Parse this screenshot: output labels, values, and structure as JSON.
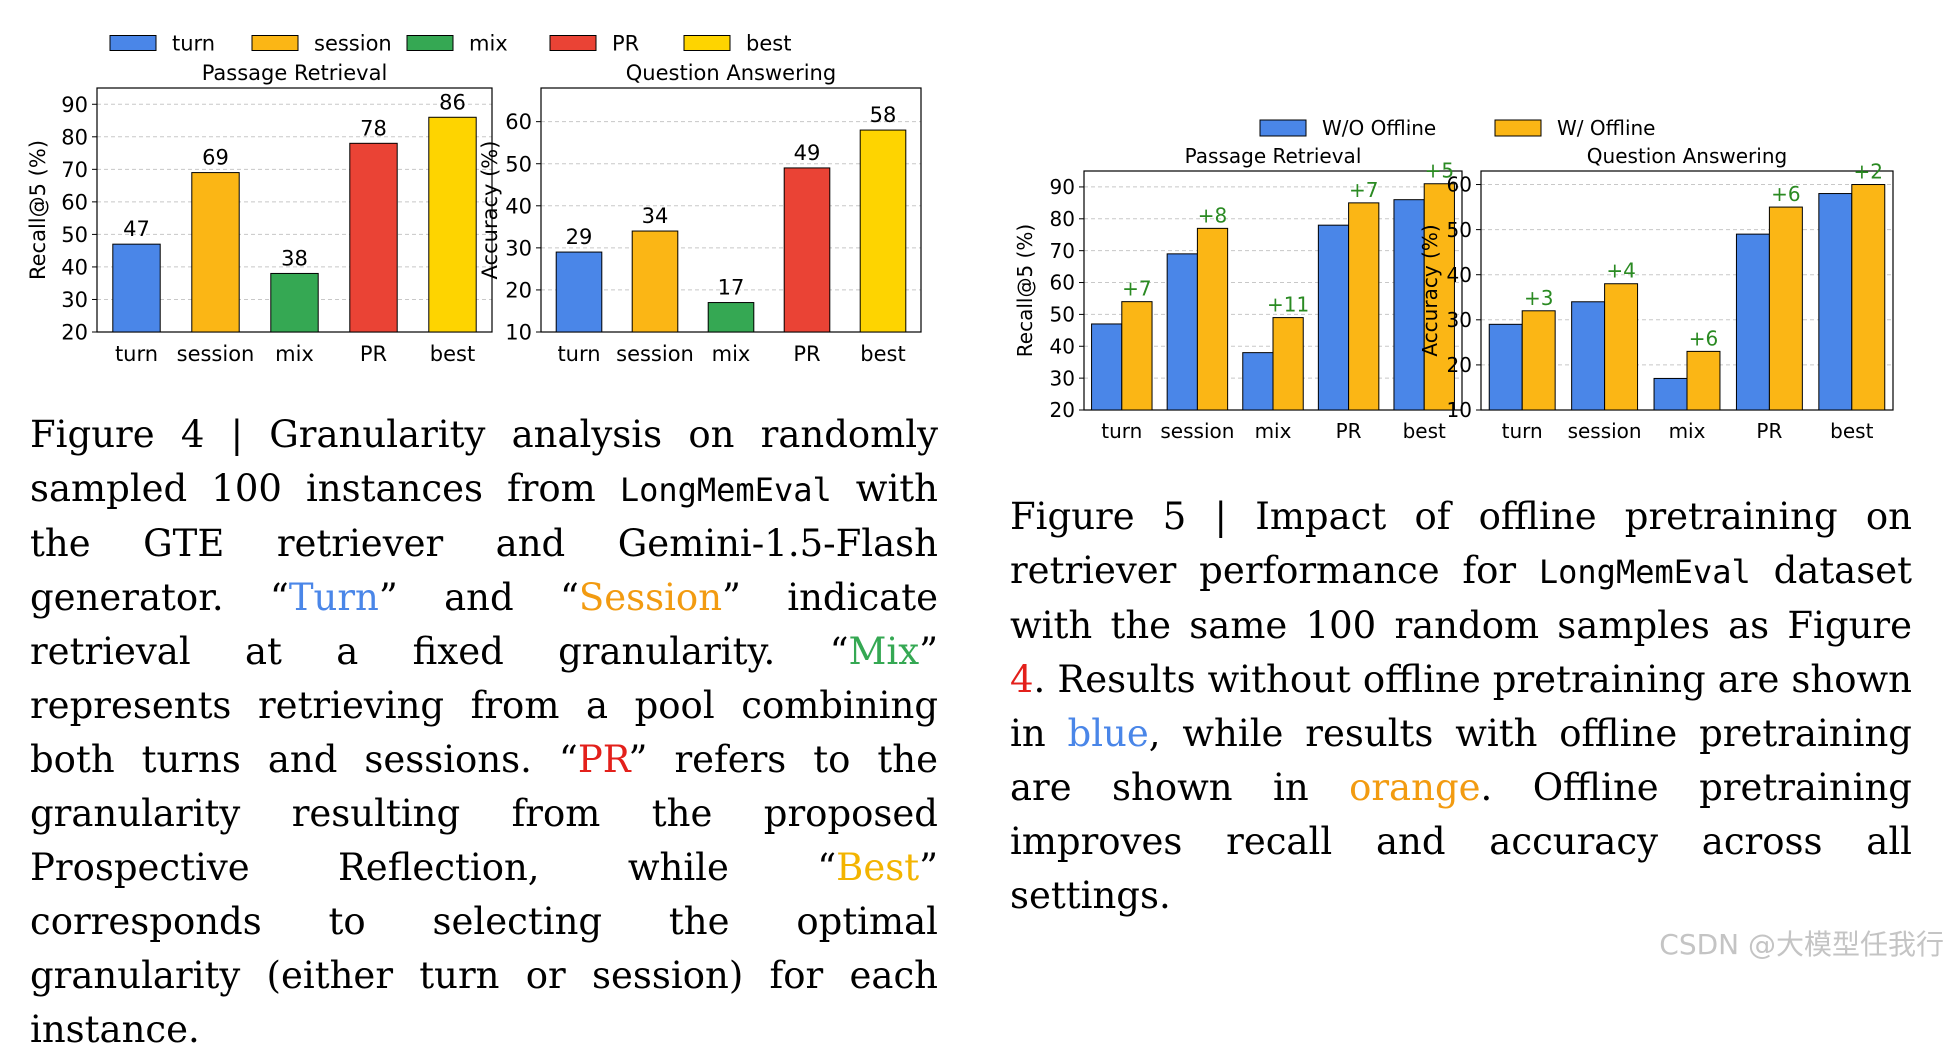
{
  "chart_data": [
    {
      "id": "fig4",
      "type": "bar",
      "legend": {
        "placement": "top",
        "items": [
          {
            "label": "turn",
            "color": "#4a86e8"
          },
          {
            "label": "session",
            "color": "#fbb615"
          },
          {
            "label": "mix",
            "color": "#35a853"
          },
          {
            "label": "PR",
            "color": "#ea4335"
          },
          {
            "label": "best",
            "color": "#fed400"
          }
        ]
      },
      "panels": [
        {
          "title": "Passage Retrieval",
          "ylabel": "Recall@5 (%)",
          "ylim": [
            20,
            95
          ],
          "yticks": [
            20,
            30,
            40,
            50,
            60,
            70,
            80,
            90
          ],
          "grid": true,
          "categories": [
            "turn",
            "session",
            "mix",
            "PR",
            "best"
          ],
          "values": [
            47,
            69,
            38,
            78,
            86
          ]
        },
        {
          "title": "Question Answering",
          "ylabel": "Accuracy (%)",
          "ylim": [
            10,
            68
          ],
          "yticks": [
            10,
            20,
            30,
            40,
            50,
            60
          ],
          "grid": true,
          "categories": [
            "turn",
            "session",
            "mix",
            "PR",
            "best"
          ],
          "values": [
            29,
            34,
            17,
            49,
            58
          ]
        }
      ]
    },
    {
      "id": "fig5",
      "type": "bar",
      "legend": {
        "placement": "top",
        "items": [
          {
            "label": "W/O Offline",
            "color": "#4a86e8"
          },
          {
            "label": "W/ Offline",
            "color": "#fbb615"
          }
        ]
      },
      "panels": [
        {
          "title": "Passage Retrieval",
          "ylabel": "Recall@5 (%)",
          "ylim": [
            20,
            95
          ],
          "yticks": [
            20,
            30,
            40,
            50,
            60,
            70,
            80,
            90
          ],
          "grid": true,
          "categories": [
            "turn",
            "session",
            "mix",
            "PR",
            "best"
          ],
          "series": [
            {
              "name": "W/O Offline",
              "values": [
                47,
                69,
                38,
                78,
                86
              ]
            },
            {
              "name": "W/ Offline",
              "values": [
                54,
                77,
                49,
                85,
                91
              ]
            }
          ],
          "annotations": [
            "+7",
            "+8",
            "+11",
            "+7",
            "+5"
          ]
        },
        {
          "title": "Question Answering",
          "ylabel": "Accuracy (%)",
          "ylim": [
            10,
            63
          ],
          "yticks": [
            10,
            20,
            30,
            40,
            50,
            60
          ],
          "grid": true,
          "categories": [
            "turn",
            "session",
            "mix",
            "PR",
            "best"
          ],
          "series": [
            {
              "name": "W/O Offline",
              "values": [
                29,
                34,
                17,
                49,
                58
              ]
            },
            {
              "name": "W/ Offline",
              "values": [
                32,
                38,
                23,
                55,
                60
              ]
            }
          ],
          "annotations": [
            "+3",
            "+4",
            "+6",
            "+6",
            "+2"
          ]
        }
      ]
    }
  ],
  "colors": {
    "annotation": "#2a8a22",
    "turn": "#4a86e8",
    "session": "#f29b11",
    "mix": "#35a853",
    "pr": "#e3201b",
    "best": "#f3b400"
  },
  "captions": {
    "fig4": {
      "prefix": "Figure 4 | Granularity analysis on randomly sampled 100 instances from ",
      "code": "LongMemEval",
      "p1": " with the GTE retriever and Gemini-1.5-Flash generator. “",
      "turn": "Turn",
      "p2": "” and “",
      "session": "Session",
      "p3": "” indicate retrieval at a fixed granularity. “",
      "mix": "Mix",
      "p4": "” represents retrieving from a pool combining both turns and sessions. “",
      "pr": "PR",
      "p5": "” refers to the granularity resulting from the proposed Prospective Reflection, while “",
      "best": "Best",
      "p6": "” corresponds to selecting the optimal granularity (either turn or session) for each instance."
    },
    "fig5": {
      "prefix": "Figure 5 | Impact of offline pretraining on retriever performance for ",
      "code": "LongMemEval",
      "p1": " dataset with the same 100 random samples as Figure ",
      "ref": "4",
      "p2": ". Results without offline pretraining are shown in ",
      "blue": "blue",
      "p3": ", while results with offline pretraining are shown in ",
      "orange": "orange",
      "p4": ". Offline pretraining improves recall and accuracy across all settings."
    }
  },
  "watermark": "CSDN @大模型任我行"
}
